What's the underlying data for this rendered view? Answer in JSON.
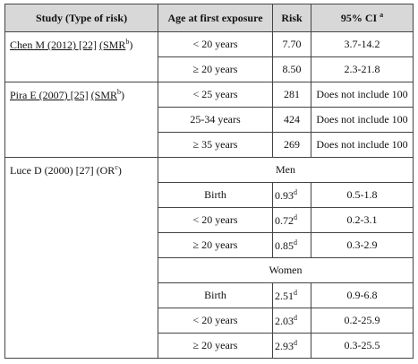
{
  "table": {
    "header": {
      "study": "Study (Type of risk)",
      "age": "Age at first exposure",
      "risk": "Risk",
      "ci": "95% CI",
      "ci_note": "a"
    },
    "studies": [
      {
        "name": "Chen M (2012) [22]",
        "type_open": "(SMR",
        "note": "b",
        "type_close": ")",
        "rows": [
          {
            "age": "< 20 years",
            "risk": "7.70",
            "ci": "3.7-14.2"
          },
          {
            "age": "≥ 20 years",
            "risk": "8.50",
            "ci": "2.3-21.8"
          }
        ]
      },
      {
        "name": "Pira E (2007) [25]",
        "type_open": "(SMR",
        "note": "b",
        "type_close": ")",
        "rows": [
          {
            "age": "< 25 years",
            "risk": "281",
            "ci": "Does not include 100"
          },
          {
            "age": "25-34 years",
            "risk": "424",
            "ci": "Does not include 100"
          },
          {
            "age": "≥ 35 years",
            "risk": "269",
            "ci": "Does not include 100"
          }
        ]
      },
      {
        "name": "Luce D (2000) [27]",
        "type_open": "(OR",
        "note": "c",
        "type_close": ")",
        "groups": [
          {
            "label": "Men",
            "rows": [
              {
                "age": "Birth",
                "risk": "0.93",
                "risk_note": "d",
                "ci": "0.5-1.8"
              },
              {
                "age": "< 20 years",
                "risk": "0.72",
                "risk_note": "d",
                "ci": "0.2-3.1"
              },
              {
                "age": "≥ 20 years",
                "risk": "0.85",
                "risk_note": "d",
                "ci": "0.3-2.9"
              }
            ]
          },
          {
            "label": "Women",
            "rows": [
              {
                "age": "Birth",
                "risk": "2.51",
                "risk_note": "d",
                "ci": "0.9-6.8"
              },
              {
                "age": "< 20 years",
                "risk": "2.03",
                "risk_note": "d",
                "ci": "0.2-25.9"
              },
              {
                "age": "≥ 20 years",
                "risk": "2.93",
                "risk_note": "d",
                "ci": "0.3-25.5"
              }
            ]
          }
        ]
      }
    ]
  }
}
